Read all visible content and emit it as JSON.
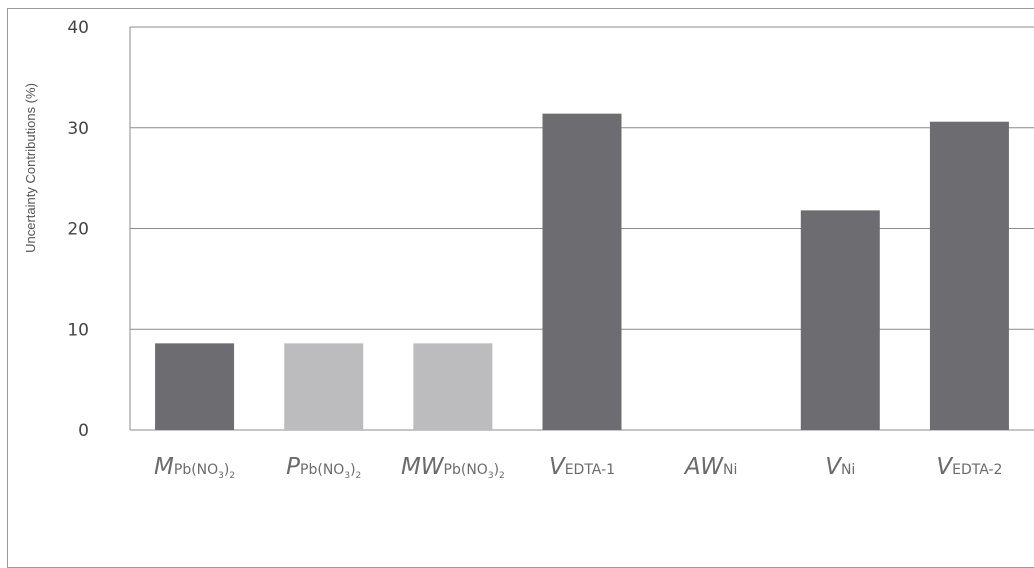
{
  "chart_data": {
    "type": "bar",
    "ylabel": "Uncertainty Contributions (%)",
    "ylim": [
      0,
      40
    ],
    "yticks": [
      "0",
      "10",
      "20",
      "30",
      "40"
    ],
    "grid": true,
    "categories": [
      {
        "main": "M",
        "sub": "Pb(NO",
        "subsub": "3",
        "close": ")",
        "subsub2": "2"
      },
      {
        "main": "P",
        "sub": "Pb(NO",
        "subsub": "3",
        "close": ")",
        "subsub2": "2"
      },
      {
        "main": "MW",
        "sub": "Pb(NO",
        "subsub": "3",
        "close": ")",
        "subsub2": "2"
      },
      {
        "main": "V",
        "sub": "EDTA-1",
        "subsub": "",
        "close": "",
        "subsub2": ""
      },
      {
        "main": "AW",
        "sub": "Ni",
        "subsub": "",
        "close": "",
        "subsub2": ""
      },
      {
        "main": "V",
        "sub": "Ni",
        "subsub": "",
        "close": "",
        "subsub2": ""
      },
      {
        "main": "V",
        "sub": "EDTA-2",
        "subsub": "",
        "close": "",
        "subsub2": ""
      }
    ],
    "values": [
      8.6,
      8.6,
      8.6,
      31.4,
      0,
      21.8,
      30.6
    ],
    "bar_colors": [
      "#6d6c70",
      "#bcbcbf",
      "#bcbcbf",
      "#6d6c70",
      "#6d6c70",
      "#6d6c70",
      "#6d6c70"
    ]
  }
}
